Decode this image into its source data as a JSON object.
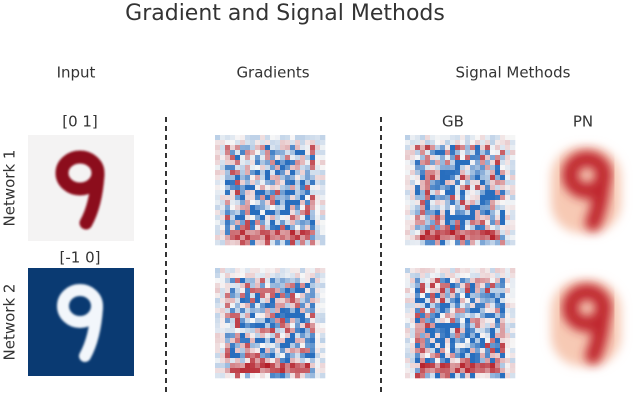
{
  "title": "Gradient and Signal Methods",
  "columns": {
    "input": "Input",
    "gradients": "Gradients",
    "signal_methods": {
      "label": "Signal Methods",
      "methods": [
        "GB",
        "PN"
      ]
    }
  },
  "rows": [
    {
      "label": "Network 1",
      "input_range": "[0 1]"
    },
    {
      "label": "Network 2",
      "input_range": "[-1 0]"
    }
  ]
}
